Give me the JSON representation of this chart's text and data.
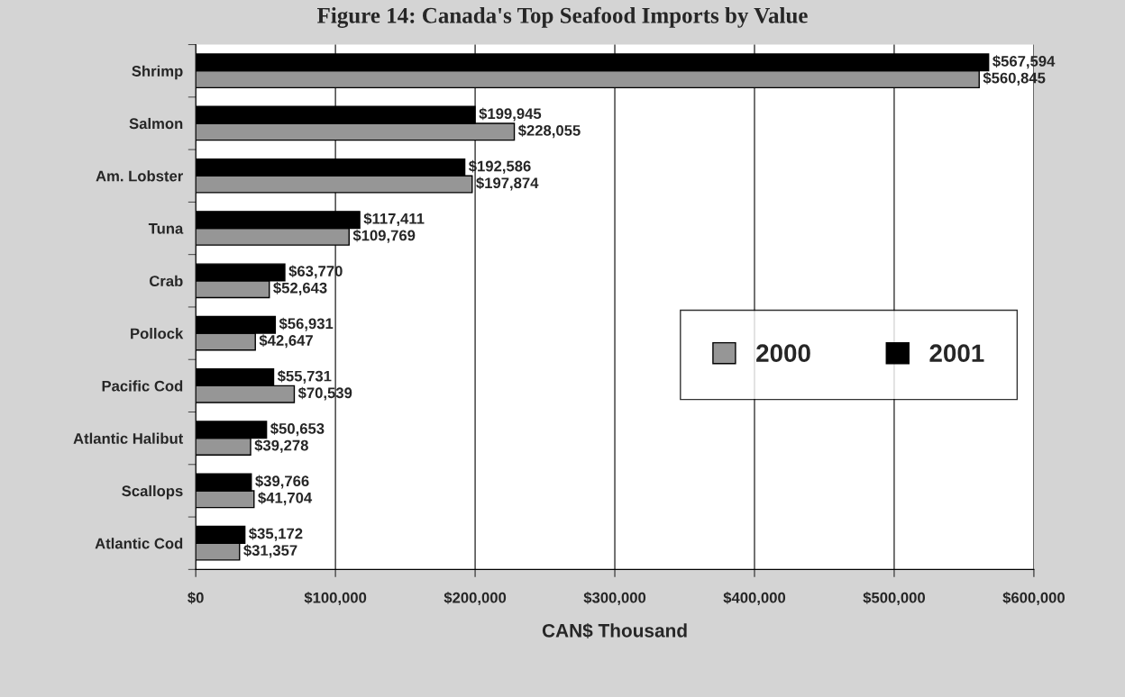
{
  "chart_data": {
    "type": "bar",
    "orientation": "horizontal",
    "title": "Figure 14: Canada's Top Seafood Imports by Value",
    "xlabel": "CAN$ Thousand",
    "categories": [
      "Shrimp",
      "Salmon",
      "Am. Lobster",
      "Tuna",
      "Crab",
      "Pollock",
      "Pacific Cod",
      "Atlantic Halibut",
      "Scallops",
      "Atlantic Cod"
    ],
    "series": [
      {
        "name": "2000",
        "color": "#969696",
        "values": [
          560845,
          228055,
          197874,
          109769,
          52643,
          42647,
          70539,
          39278,
          41704,
          31357
        ],
        "value_labels": [
          "$560,845",
          "$228,055",
          "$197,874",
          "$109,769",
          "$52,643",
          "$42,647",
          "$70,539",
          "$39,278",
          "$41,704",
          "$31,357"
        ]
      },
      {
        "name": "2001",
        "color": "#000000",
        "values": [
          567594,
          199945,
          192586,
          117411,
          63770,
          56931,
          55731,
          50653,
          39766,
          35172
        ],
        "value_labels": [
          "$567,594",
          "$199,945",
          "$192,586",
          "$117,411",
          "$63,770",
          "$56,931",
          "$55,731",
          "$50,653",
          "$39,766",
          "$35,172"
        ]
      }
    ],
    "xlim": [
      0,
      600000
    ],
    "xticks": [
      {
        "value": 0,
        "label": "$0"
      },
      {
        "value": 100000,
        "label": "$100,000"
      },
      {
        "value": 200000,
        "label": "$200,000"
      },
      {
        "value": 300000,
        "label": "$300,000"
      },
      {
        "value": 400000,
        "label": "$400,000"
      },
      {
        "value": 500000,
        "label": "$500,000"
      },
      {
        "value": 600000,
        "label": "$600,000"
      }
    ],
    "grid": "x",
    "legend": "lower right"
  }
}
